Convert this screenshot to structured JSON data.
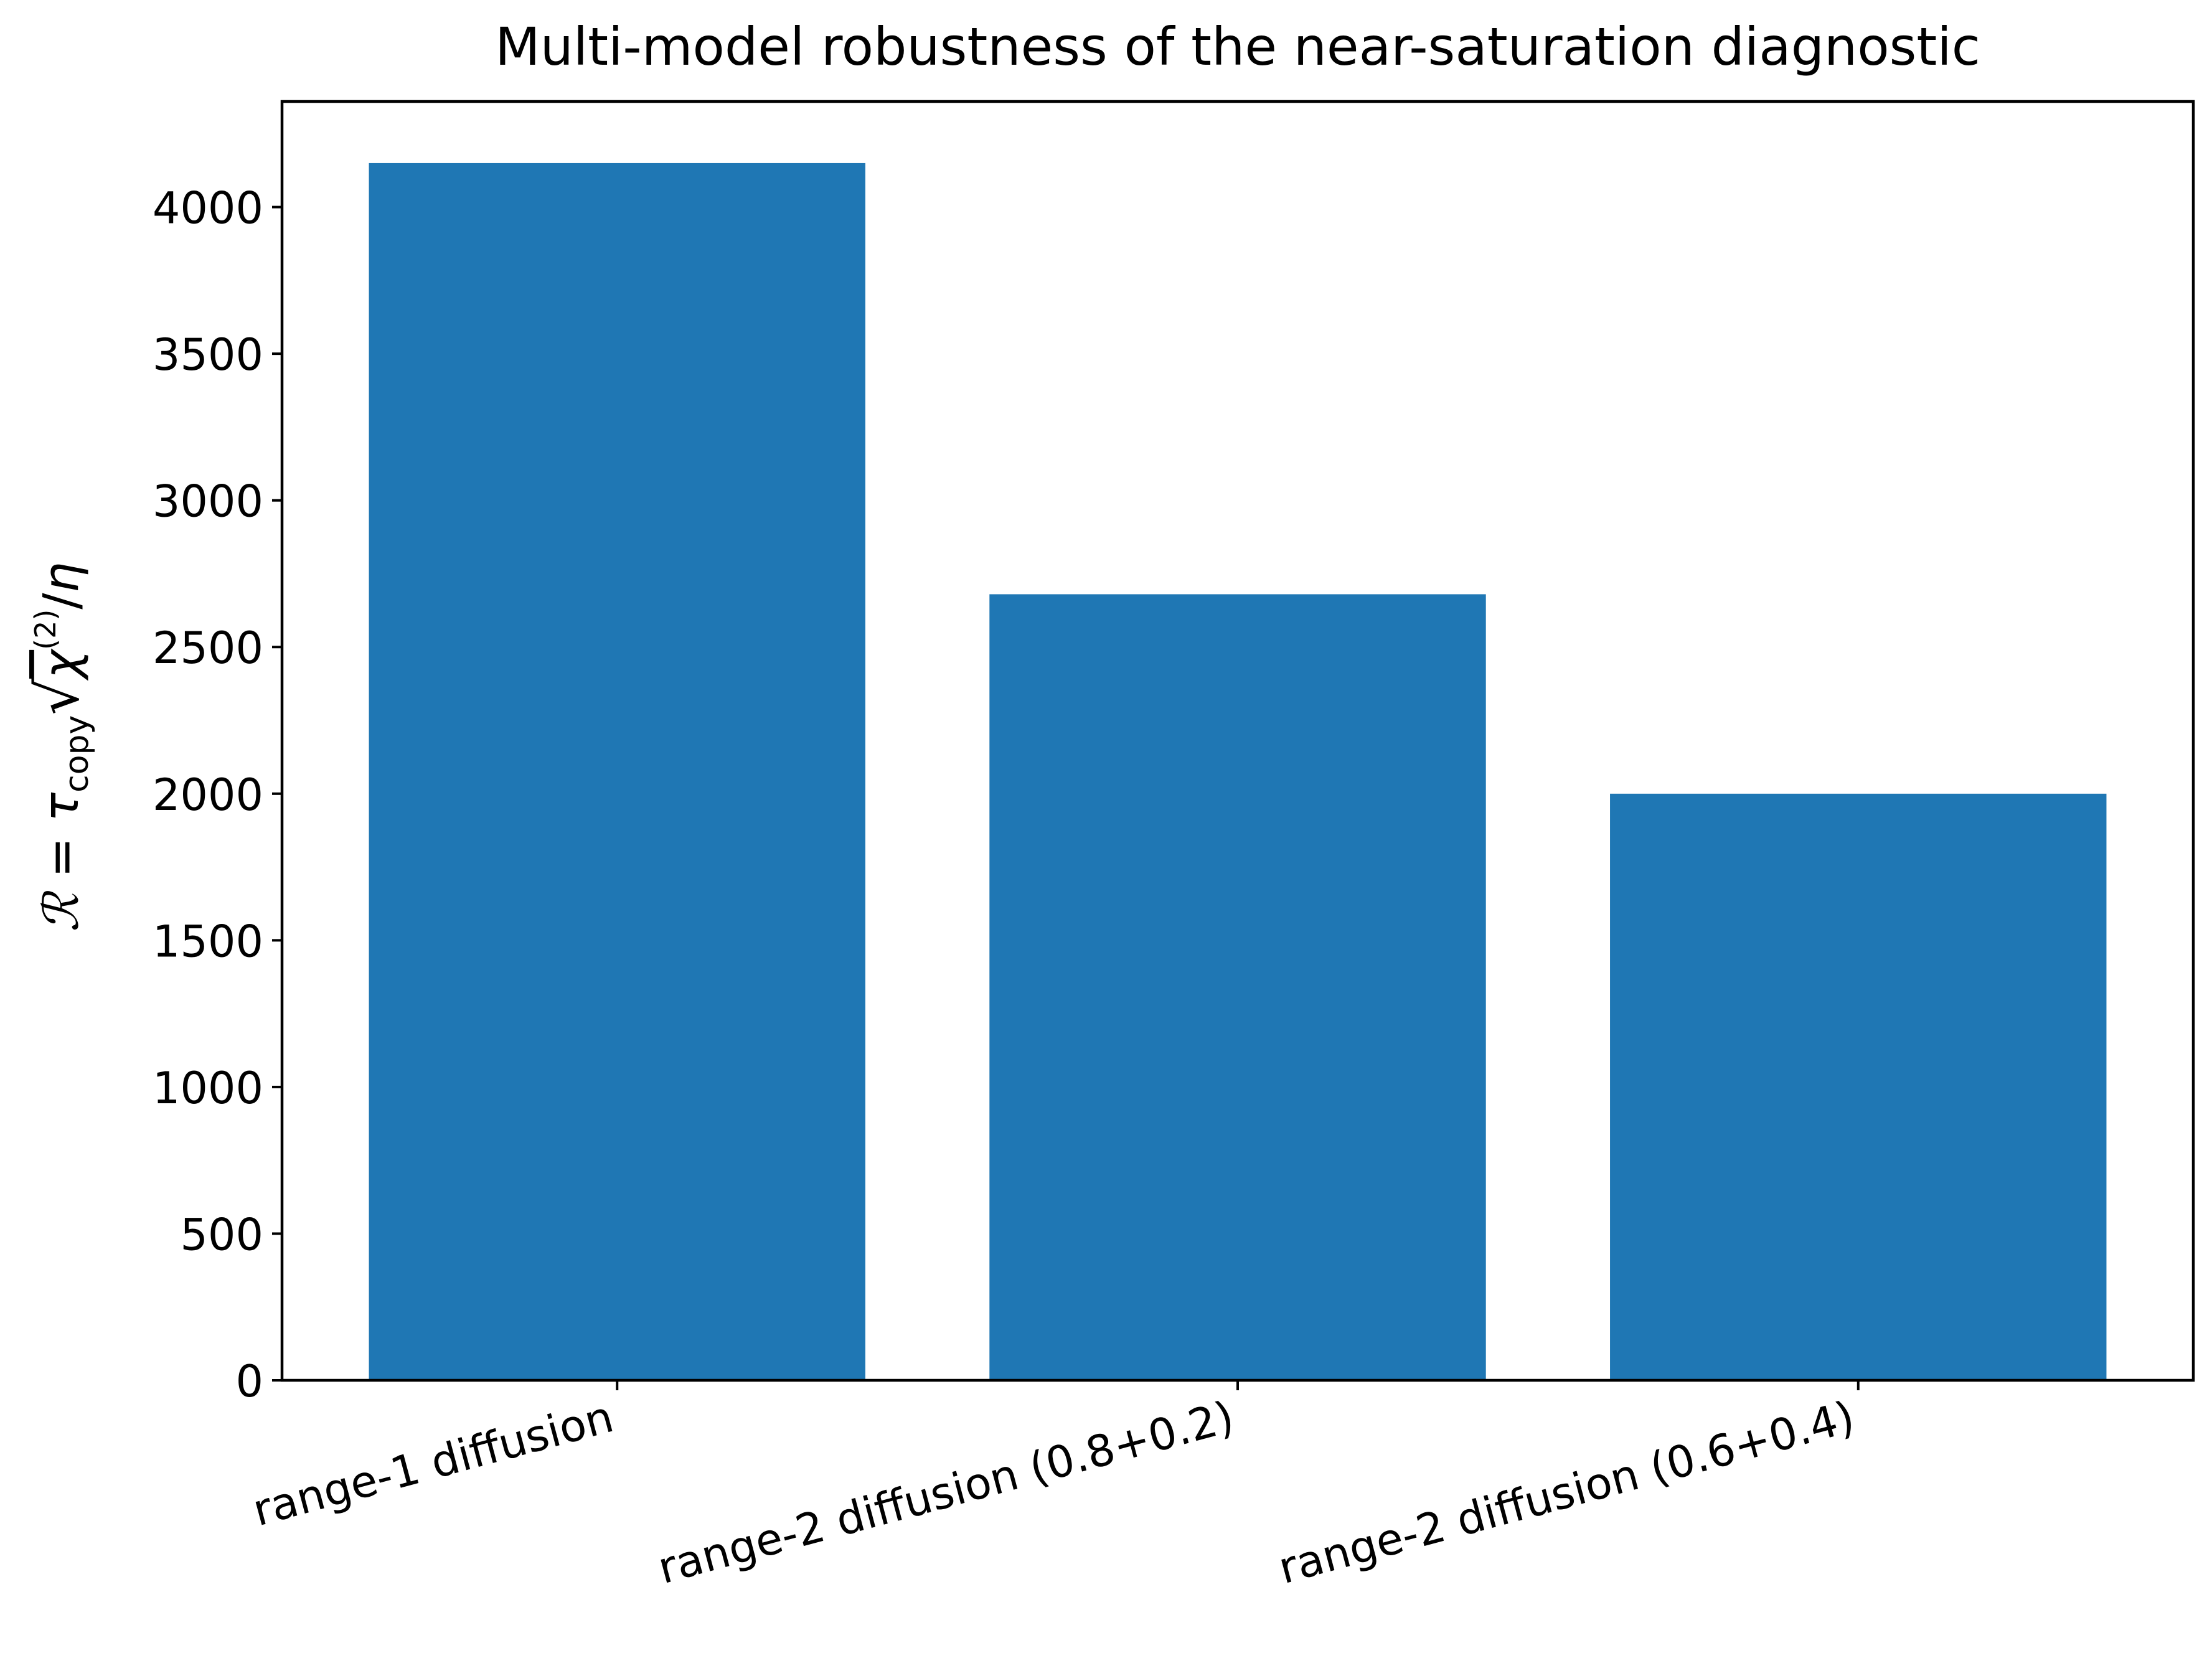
{
  "chart_data": {
    "type": "bar",
    "title": "Multi-model robustness of the near-saturation diagnostic",
    "xlabel": "",
    "ylabel": {
      "lhs": "ℛ",
      "eq": " = ",
      "tau": "τ",
      "tau_sub": "copy",
      "chi": "χ",
      "chi_sup": "(2)",
      "div": "/",
      "eta": "η"
    },
    "categories": [
      "range-1 diffusion",
      "range-2 diffusion (0.8+0.2)",
      "range-2 diffusion (0.6+0.4)"
    ],
    "values": [
      4150,
      2680,
      2000
    ],
    "ylim": [
      0,
      4360
    ],
    "yticks": [
      0,
      500,
      1000,
      1500,
      2000,
      2500,
      3000,
      3500,
      4000
    ],
    "bar_color": "#1f77b4",
    "grid": false,
    "legend": "none"
  }
}
